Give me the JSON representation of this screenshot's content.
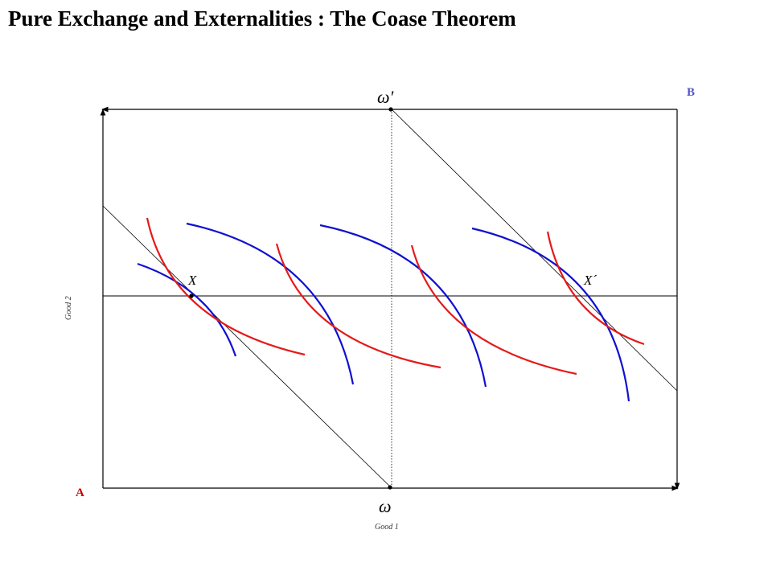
{
  "title": "Pure Exchange and Externalities :  The Coase Theorem",
  "labels": {
    "corner_a": "A",
    "corner_b": "B",
    "good1": "Good 1",
    "good2": "Good 2",
    "omega": "ω",
    "omega_prime": "ω′",
    "point_x": "X",
    "point_x_prime": "X´"
  },
  "colors": {
    "corner_a": "#cc0000",
    "corner_b": "#5555cc",
    "indifference_a": "#e41a1a",
    "indifference_b": "#1010d0",
    "lines": "#000000"
  }
}
